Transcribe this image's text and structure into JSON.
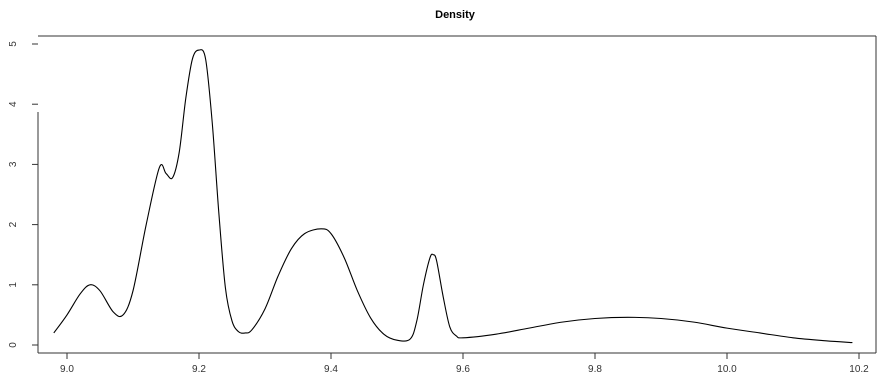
{
  "chart_data": {
    "type": "line",
    "title": "Density",
    "xlabel": "",
    "ylabel": "",
    "xlim": [
      8.98,
      10.2
    ],
    "ylim": [
      0,
      5
    ],
    "xticks": [
      9.0,
      9.2,
      9.4,
      9.6,
      9.8,
      10.0,
      10.2
    ],
    "xtick_labels": [
      "9.0",
      "9.2",
      "9.4",
      "9.6",
      "9.8",
      "10.0",
      "10.2"
    ],
    "yticks": [
      0,
      1,
      2,
      3,
      4,
      5
    ],
    "ytick_labels": [
      "0",
      "1",
      "2",
      "3",
      "4",
      "5"
    ],
    "grid": false,
    "legend": "none",
    "line_color": "#000000",
    "series": [
      {
        "x": [
          8.98,
          9.0,
          9.02,
          9.035,
          9.05,
          9.07,
          9.085,
          9.1,
          9.12,
          9.14,
          9.15,
          9.16,
          9.17,
          9.18,
          9.19,
          9.2,
          9.21,
          9.22,
          9.23,
          9.24,
          9.25,
          9.26,
          9.27,
          9.28,
          9.3,
          9.32,
          9.34,
          9.36,
          9.385,
          9.4,
          9.42,
          9.44,
          9.46,
          9.48,
          9.5,
          9.52,
          9.53,
          9.54,
          9.55,
          9.555,
          9.56,
          9.57,
          9.58,
          9.59,
          9.6,
          9.65,
          9.7,
          9.75,
          9.8,
          9.85,
          9.9,
          9.95,
          10.0,
          10.05,
          10.1,
          10.15,
          10.19
        ],
        "y": [
          0.2,
          0.5,
          0.85,
          1.0,
          0.9,
          0.55,
          0.5,
          0.9,
          2.0,
          2.95,
          2.85,
          2.78,
          3.2,
          4.1,
          4.75,
          4.9,
          4.75,
          3.7,
          2.2,
          0.95,
          0.4,
          0.22,
          0.2,
          0.25,
          0.6,
          1.15,
          1.6,
          1.85,
          1.93,
          1.85,
          1.45,
          0.9,
          0.45,
          0.18,
          0.08,
          0.1,
          0.4,
          1.0,
          1.45,
          1.5,
          1.4,
          0.8,
          0.3,
          0.15,
          0.12,
          0.18,
          0.28,
          0.38,
          0.44,
          0.46,
          0.44,
          0.38,
          0.28,
          0.2,
          0.12,
          0.07,
          0.04
        ]
      }
    ]
  }
}
